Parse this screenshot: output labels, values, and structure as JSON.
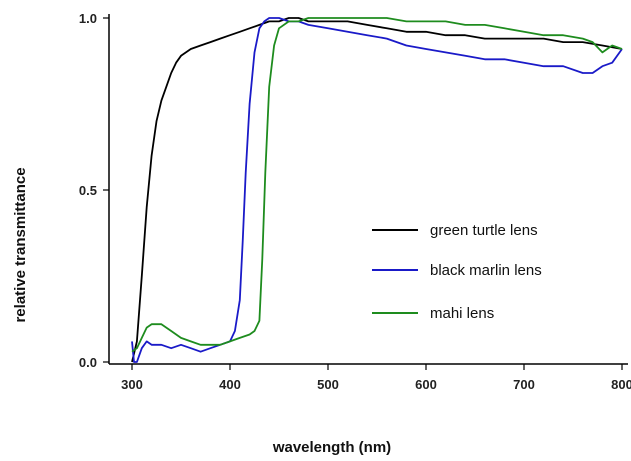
{
  "chart_data": {
    "type": "line",
    "title": "",
    "xlabel": "wavelength (nm)",
    "ylabel": "relative transmittance",
    "xlim": [
      300,
      800
    ],
    "ylim": [
      0.0,
      1.0
    ],
    "x_ticks": [
      "300",
      "400",
      "500",
      "600",
      "700",
      "800"
    ],
    "y_ticks": [
      "0.0",
      "0.5",
      "1.0"
    ],
    "grid": false,
    "legend_position": "center-right",
    "series": [
      {
        "name": "green turtle lens",
        "color": "#000000",
        "x": [
          300,
          305,
          310,
          315,
          320,
          325,
          330,
          335,
          340,
          345,
          350,
          355,
          360,
          370,
          380,
          390,
          400,
          410,
          420,
          430,
          440,
          450,
          460,
          470,
          480,
          490,
          500,
          520,
          540,
          560,
          580,
          600,
          620,
          640,
          660,
          680,
          700,
          720,
          740,
          760,
          780,
          800
        ],
        "y": [
          0.0,
          0.06,
          0.25,
          0.45,
          0.6,
          0.7,
          0.76,
          0.8,
          0.84,
          0.87,
          0.89,
          0.9,
          0.91,
          0.92,
          0.93,
          0.94,
          0.95,
          0.96,
          0.97,
          0.98,
          0.99,
          0.99,
          1.0,
          1.0,
          0.99,
          0.99,
          0.99,
          0.99,
          0.98,
          0.97,
          0.96,
          0.96,
          0.95,
          0.95,
          0.94,
          0.94,
          0.94,
          0.94,
          0.93,
          0.93,
          0.92,
          0.91
        ]
      },
      {
        "name": "black marlin lens",
        "color": "#1a1ac8",
        "x": [
          300,
          302,
          305,
          310,
          315,
          320,
          330,
          340,
          350,
          360,
          370,
          380,
          390,
          400,
          405,
          410,
          413,
          416,
          420,
          425,
          430,
          435,
          440,
          450,
          460,
          470,
          480,
          500,
          520,
          540,
          560,
          580,
          600,
          620,
          640,
          660,
          680,
          700,
          720,
          740,
          760,
          770,
          780,
          790,
          800
        ],
        "y": [
          0.06,
          0.0,
          0.0,
          0.04,
          0.06,
          0.05,
          0.05,
          0.04,
          0.05,
          0.04,
          0.03,
          0.04,
          0.05,
          0.06,
          0.09,
          0.18,
          0.35,
          0.55,
          0.75,
          0.9,
          0.97,
          0.99,
          1.0,
          1.0,
          0.99,
          0.99,
          0.98,
          0.97,
          0.96,
          0.95,
          0.94,
          0.92,
          0.91,
          0.9,
          0.89,
          0.88,
          0.88,
          0.87,
          0.86,
          0.86,
          0.84,
          0.84,
          0.86,
          0.87,
          0.91
        ]
      },
      {
        "name": "mahi lens",
        "color": "#1e8c1e",
        "x": [
          300,
          305,
          310,
          315,
          320,
          325,
          330,
          340,
          350,
          360,
          370,
          380,
          390,
          400,
          410,
          420,
          425,
          430,
          433,
          436,
          440,
          445,
          450,
          460,
          470,
          480,
          500,
          520,
          540,
          560,
          580,
          600,
          620,
          640,
          660,
          680,
          700,
          720,
          740,
          760,
          770,
          780,
          790,
          800
        ],
        "y": [
          0.03,
          0.04,
          0.07,
          0.1,
          0.11,
          0.11,
          0.11,
          0.09,
          0.07,
          0.06,
          0.05,
          0.05,
          0.05,
          0.06,
          0.07,
          0.08,
          0.09,
          0.12,
          0.3,
          0.55,
          0.8,
          0.92,
          0.97,
          0.99,
          0.99,
          1.0,
          1.0,
          1.0,
          1.0,
          1.0,
          0.99,
          0.99,
          0.99,
          0.98,
          0.98,
          0.97,
          0.96,
          0.95,
          0.95,
          0.94,
          0.93,
          0.9,
          0.92,
          0.91
        ]
      }
    ]
  }
}
